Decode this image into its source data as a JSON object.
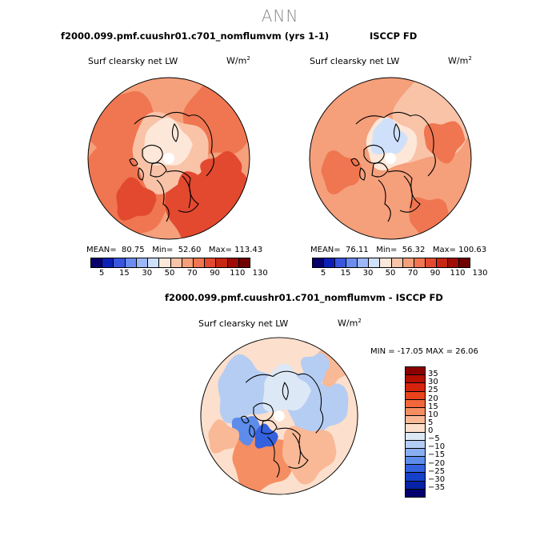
{
  "title": "ANN",
  "colors": {
    "abs_scale": [
      "#08006b",
      "#0b1fb5",
      "#3a56dc",
      "#6b8df0",
      "#9db8fa",
      "#cfe0fb",
      "#fde7d8",
      "#f9c3a8",
      "#f59f7b",
      "#ef7650",
      "#e3492f",
      "#c82714",
      "#9e0c05",
      "#6e0000"
    ],
    "diff_scale": [
      "#8a0000",
      "#b31000",
      "#d6240c",
      "#e9431c",
      "#f2673a",
      "#f58e62",
      "#f9b896",
      "#fcdfcc",
      "#dde8f6",
      "#b5cdf3",
      "#8aaff0",
      "#5d8cea",
      "#3462df",
      "#1540c9",
      "#0623a6",
      "#02006e"
    ],
    "coast": "#000000"
  },
  "plots": [
    {
      "title": "f2000.099.pmf.cuushr01.c701_nomflumvm (yrs 1-1)",
      "variable": "Surf clearsky net LW",
      "units": "W/m",
      "units_sup": "2",
      "mean_label": "MEAN=",
      "mean": "80.75",
      "min_label": "Min=",
      "min": "52.60",
      "max_label": "Max=",
      "max": "113.43"
    },
    {
      "title": "ISCCP FD",
      "variable": "Surf clearsky net LW",
      "units": "W/m",
      "units_sup": "2",
      "mean_label": "MEAN=",
      "mean": "76.11",
      "min_label": "Min=",
      "min": "56.32",
      "max_label": "Max=",
      "max": "100.63"
    },
    {
      "title": "f2000.099.pmf.cuushr01.c701_nomflumvm - ISCCP FD",
      "variable": "Surf clearsky net LW",
      "units": "W/m",
      "units_sup": "2",
      "minmax_text": "MIN = -17.05 MAX =  26.06"
    }
  ],
  "abs_ticks": [
    "5",
    "15",
    "30",
    "50",
    "70",
    "90",
    "110",
    "130"
  ],
  "diff_ticks": [
    "35",
    "30",
    "25",
    "20",
    "15",
    "10",
    "5",
    "0",
    "−5",
    "−10",
    "−15",
    "−20",
    "−25",
    "−30",
    "−35"
  ],
  "chart_data": [
    {
      "type": "heatmap",
      "projection": "north-polar-stereographic",
      "title": "f2000.099.pmf.cuushr01.c701_nomflumvm (yrs 1-1)",
      "field": "Surf clearsky net LW",
      "units": "W/m2",
      "mean": 80.75,
      "min": 52.6,
      "max": 113.43,
      "contour_levels": [
        5,
        15,
        30,
        50,
        70,
        90,
        110,
        130
      ]
    },
    {
      "type": "heatmap",
      "projection": "north-polar-stereographic",
      "title": "ISCCP FD",
      "field": "Surf clearsky net LW",
      "units": "W/m2",
      "mean": 76.11,
      "min": 56.32,
      "max": 100.63,
      "contour_levels": [
        5,
        15,
        30,
        50,
        70,
        90,
        110,
        130
      ]
    },
    {
      "type": "heatmap",
      "projection": "north-polar-stereographic",
      "title": "f2000.099.pmf.cuushr01.c701_nomflumvm - ISCCP FD",
      "field": "Surf clearsky net LW",
      "units": "W/m2",
      "min": -17.05,
      "max": 26.06,
      "contour_levels": [
        -35,
        -30,
        -25,
        -20,
        -15,
        -10,
        -5,
        0,
        5,
        10,
        15,
        20,
        25,
        30,
        35
      ]
    }
  ]
}
